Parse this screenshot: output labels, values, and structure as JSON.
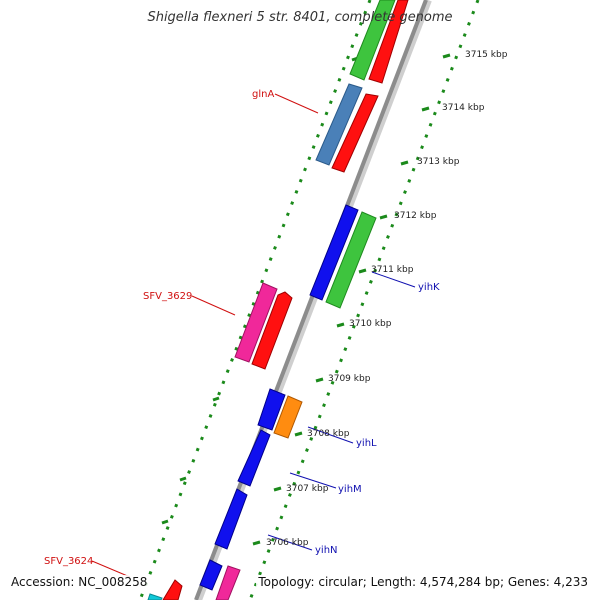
{
  "title": "Shigella flexneri 5 str. 8401, complete genome",
  "accession": "Accession: NC_008258",
  "topology": "Topology: circular; Length: 4,574,284 bp; Genes: 4,233",
  "ticks": [
    "3715 kbp",
    "3714 kbp",
    "3713 kbp",
    "3712 kbp",
    "3711 kbp",
    "3710 kbp",
    "3709 kbp",
    "3708 kbp",
    "3707 kbp",
    "3706 kbp"
  ],
  "gene_labels": {
    "glnA": "glnA",
    "sfv3629": "SFV_3629",
    "sfv3624": "SFV_3624",
    "yihK": "yihK",
    "yihL": "yihL",
    "yihM": "yihM",
    "yihN": "yihN"
  },
  "colors": {
    "backbone": "#8c8c8c",
    "dots": "#1b8a1b",
    "red": "#ff1010",
    "green": "#3ec43e",
    "blue": "#1010ee",
    "steel": "#4a80b8",
    "pink": "#f0289a",
    "orange": "#ff8c10",
    "cyan": "#10c8d8",
    "label_red": "#d01010",
    "label_blue": "#1010b0"
  }
}
